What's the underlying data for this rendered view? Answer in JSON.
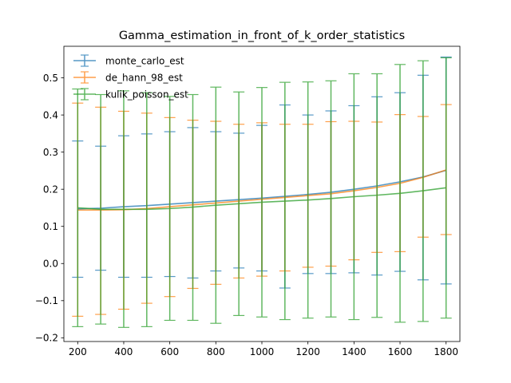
{
  "chart_data": {
    "type": "line",
    "title": "Gamma_estimation_in_front_of_k_order_statistics",
    "xlabel": "",
    "ylabel": "",
    "xlim": [
      140,
      1860
    ],
    "ylim": [
      -0.21,
      0.585
    ],
    "xticks": [
      200,
      400,
      600,
      800,
      1000,
      1200,
      1400,
      1600,
      1800
    ],
    "yticks": [
      -0.2,
      -0.1,
      0.0,
      0.1,
      0.2,
      0.3,
      0.4,
      0.5
    ],
    "xtick_labels": [
      "200",
      "400",
      "600",
      "800",
      "1000",
      "1200",
      "1400",
      "1600",
      "1800"
    ],
    "ytick_labels": [
      "−0.2",
      "−0.1",
      "0.0",
      "0.1",
      "0.2",
      "0.3",
      "0.4",
      "0.5"
    ],
    "grid": false,
    "legend_position": "top-left",
    "x": [
      200,
      300,
      400,
      500,
      600,
      700,
      800,
      900,
      1000,
      1100,
      1200,
      1300,
      1400,
      1500,
      1600,
      1700,
      1800
    ],
    "series": [
      {
        "name": "monte_carlo_est",
        "color": "#1f77b4",
        "values": [
          0.147,
          0.149,
          0.153,
          0.156,
          0.16,
          0.164,
          0.168,
          0.172,
          0.176,
          0.181,
          0.186,
          0.192,
          0.2,
          0.209,
          0.22,
          0.233,
          0.251
        ],
        "err_low": [
          -0.037,
          -0.018,
          -0.037,
          -0.037,
          -0.035,
          -0.039,
          -0.02,
          -0.012,
          -0.02,
          -0.066,
          -0.027,
          -0.027,
          -0.025,
          -0.031,
          -0.021,
          -0.044,
          -0.055
        ],
        "err_high": [
          0.33,
          0.316,
          0.344,
          0.349,
          0.355,
          0.366,
          0.355,
          0.351,
          0.372,
          0.427,
          0.4,
          0.411,
          0.425,
          0.449,
          0.46,
          0.507,
          0.556
        ]
      },
      {
        "name": "de_hann_98_est",
        "color": "#ff7f0e",
        "values": [
          0.144,
          0.144,
          0.145,
          0.148,
          0.153,
          0.158,
          0.163,
          0.168,
          0.173,
          0.178,
          0.183,
          0.188,
          0.196,
          0.205,
          0.216,
          0.232,
          0.252
        ],
        "err_low": [
          -0.142,
          -0.137,
          -0.123,
          -0.107,
          -0.089,
          -0.067,
          -0.056,
          -0.039,
          -0.034,
          -0.02,
          -0.01,
          -0.007,
          0.01,
          0.03,
          0.032,
          0.071,
          0.078
        ],
        "err_high": [
          0.432,
          0.421,
          0.41,
          0.405,
          0.393,
          0.386,
          0.383,
          0.375,
          0.379,
          0.375,
          0.375,
          0.382,
          0.383,
          0.381,
          0.401,
          0.396,
          0.428
        ]
      },
      {
        "name": "kulik_poisson_est",
        "color": "#2ca02c",
        "values": [
          0.15,
          0.146,
          0.146,
          0.146,
          0.148,
          0.152,
          0.157,
          0.161,
          0.165,
          0.168,
          0.171,
          0.175,
          0.18,
          0.184,
          0.189,
          0.196,
          0.204
        ],
        "err_low": [
          -0.17,
          -0.163,
          -0.172,
          -0.17,
          -0.153,
          -0.153,
          -0.161,
          -0.14,
          -0.144,
          -0.151,
          -0.147,
          -0.144,
          -0.151,
          -0.145,
          -0.158,
          -0.156,
          -0.147
        ],
        "err_high": [
          0.47,
          0.455,
          0.465,
          0.46,
          0.45,
          0.455,
          0.475,
          0.462,
          0.474,
          0.488,
          0.489,
          0.492,
          0.511,
          0.511,
          0.536,
          0.546,
          0.554
        ]
      }
    ]
  }
}
